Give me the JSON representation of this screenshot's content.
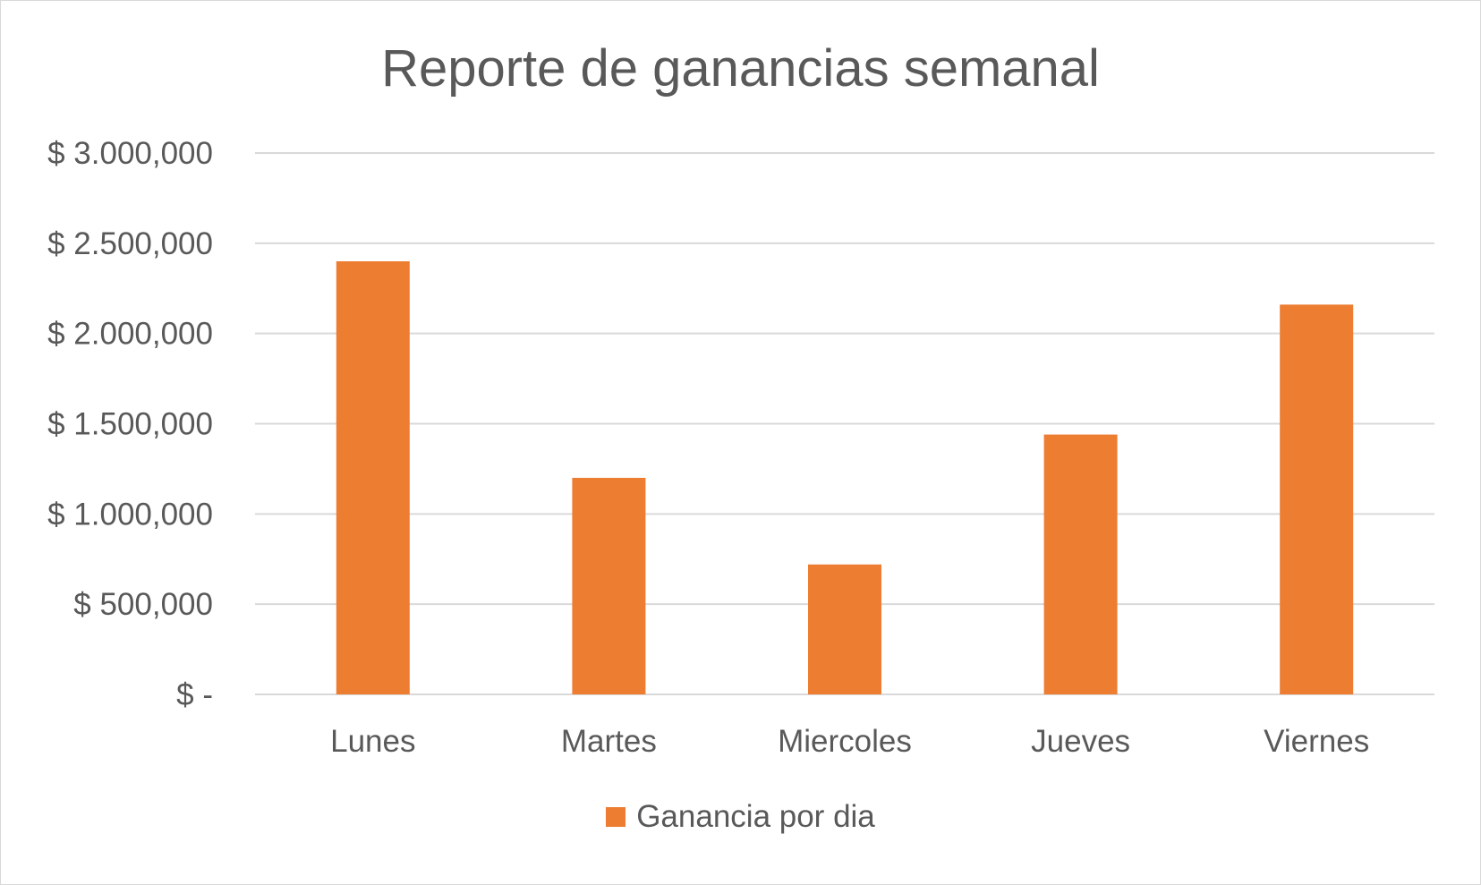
{
  "chart_data": {
    "type": "bar",
    "title": "Reporte de ganancias semanal",
    "xlabel": "",
    "ylabel": "",
    "categories": [
      "Lunes",
      "Martes",
      "Miercoles",
      "Jueves",
      "Viernes"
    ],
    "series": [
      {
        "name": "Ganancia por dia",
        "values": [
          2400000,
          1200000,
          720000,
          1440000,
          2160000
        ],
        "color": "#ed7d31"
      }
    ],
    "ylim": [
      0,
      3000000
    ],
    "yticks": [
      0,
      500000,
      1000000,
      1500000,
      2000000,
      2500000,
      3000000
    ],
    "ytick_labels": [
      "$ -",
      "$ 500,000",
      "$ 1.000,000",
      "$ 1.500,000",
      "$ 2.000,000",
      "$ 2.500,000",
      "$ 3.000,000"
    ],
    "grid": true,
    "gridline_color": "#d9d9d9",
    "legend_position": "bottom"
  }
}
